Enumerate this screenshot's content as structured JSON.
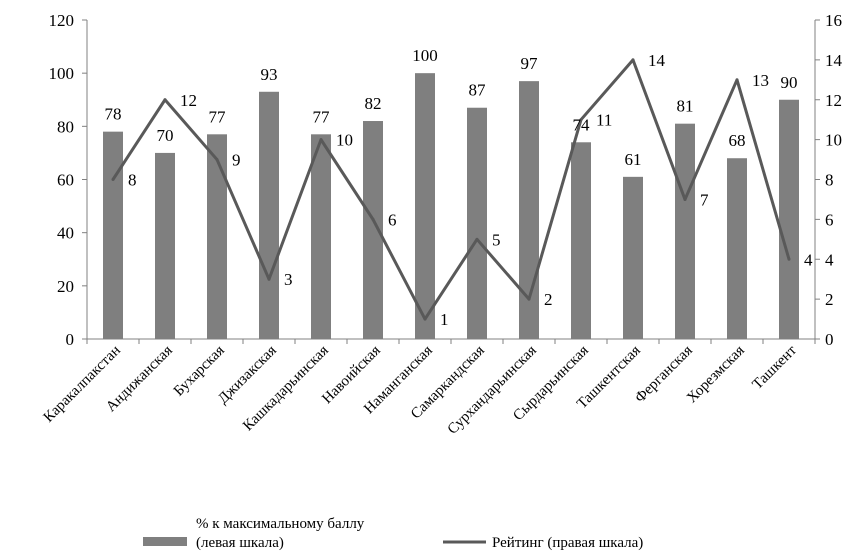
{
  "chart_data": {
    "type": "bar",
    "categories": [
      "Каракалпакстан",
      "Андижанская",
      "Бухарская",
      "Джизакская",
      "Кашкадарьинская",
      "Навоийская",
      "Наманганская",
      "Самаркандская",
      "Сурхандарьинская",
      "Сырдарьинская",
      "Ташкентская",
      "Ферганская",
      "Хорезмская",
      "Ташкент"
    ],
    "series": [
      {
        "name": "% к максимальному баллу (левая шкала)",
        "name_lines": [
          "% к максимальному баллу",
          "(левая шкала)"
        ],
        "kind": "bar",
        "axis": "left",
        "values": [
          78,
          70,
          77,
          93,
          77,
          82,
          100,
          87,
          97,
          74,
          61,
          81,
          68,
          90
        ]
      },
      {
        "name": "Рейтинг (правая шкала)",
        "kind": "line",
        "axis": "right",
        "values": [
          8,
          12,
          9,
          3,
          10,
          6,
          1,
          5,
          2,
          11,
          14,
          7,
          13,
          4
        ]
      }
    ],
    "y_left": {
      "min": 0,
      "max": 120,
      "step": 20,
      "ticks": [
        "0",
        "20",
        "40",
        "60",
        "80",
        "100",
        "120"
      ]
    },
    "y_right": {
      "min": 0,
      "max": 16,
      "step": 2,
      "ticks": [
        "0",
        "2",
        "4",
        "6",
        "8",
        "10",
        "12",
        "14",
        "16"
      ]
    },
    "title": "",
    "xlabel": "",
    "ylabel": "",
    "grid": false,
    "legend": "bottom",
    "colors": {
      "bar": "#7f7f7f",
      "line": "#595959",
      "axis": "#808080"
    }
  }
}
